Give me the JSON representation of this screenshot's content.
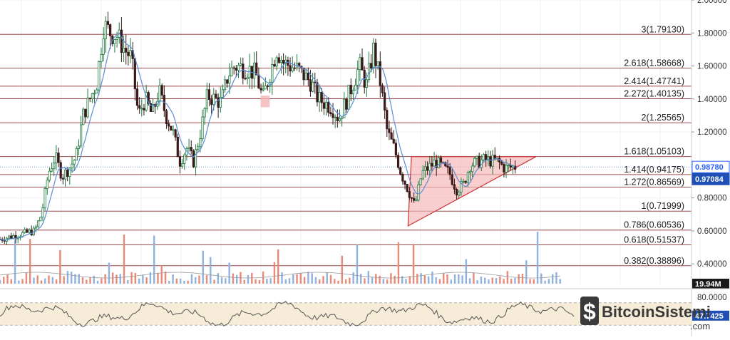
{
  "chart_data": [
    {
      "type": "candlestick",
      "panel": "price",
      "y_axis_side": "right",
      "ylim": [
        0.28,
        2.0
      ],
      "y_ticks": [
        "2.00000",
        "1.80000",
        "1.60000",
        "1.40000",
        "1.20000",
        "0.80000",
        "0.60000",
        "0.40000"
      ],
      "y_tick_values": [
        2.0,
        1.8,
        1.6,
        1.4,
        1.2,
        0.8,
        0.6,
        0.4
      ],
      "price_tags": [
        {
          "label": "0.98780",
          "value": 0.9878,
          "style": "outline",
          "color": "#2962ff"
        },
        {
          "label": "0.97084",
          "value": 0.97084,
          "style": "filled",
          "color": "#1f4fb5"
        }
      ],
      "fibonacci_levels": [
        {
          "label": "3(1.79130)",
          "value": 1.7913
        },
        {
          "label": "2.618(1.58668)",
          "value": 1.58668
        },
        {
          "label": "2.414(1.47741)",
          "value": 1.47741
        },
        {
          "label": "2.272(1.40135)",
          "value": 1.40135
        },
        {
          "label": "2(1.25565)",
          "value": 1.25565
        },
        {
          "label": "1.618(1.05103)",
          "value": 1.05103
        },
        {
          "label": "1.414(0.94175)",
          "value": 0.94175
        },
        {
          "label": "1.272(0.86569)",
          "value": 0.86569
        },
        {
          "label": "1(0.71999)",
          "value": 0.71999
        },
        {
          "label": "0.786(0.60536)",
          "value": 0.60536
        },
        {
          "label": "0.618(0.51537)",
          "value": 0.51537
        },
        {
          "label": "0.382(0.38896)",
          "value": 0.38896
        }
      ],
      "triangle_pattern": {
        "type": "ascending-triangle",
        "points": [
          [
            0.595,
            1.05
          ],
          [
            0.775,
            1.05
          ],
          [
            0.59,
            0.63
          ]
        ],
        "fill": "#f4b4b4",
        "stroke": "#cc3333"
      },
      "highlight_box": {
        "x_range": [
          0.377,
          0.39
        ],
        "y_range": [
          1.35,
          1.42
        ],
        "fill": "#f4b4b4"
      },
      "candle_colors": {
        "up": "#1e7a3e",
        "down": "#3a1a1a"
      },
      "moving_average_color": "#5b8dd6",
      "price_path": [
        [
          0.0,
          0.55
        ],
        [
          0.03,
          0.58
        ],
        [
          0.05,
          0.6
        ],
        [
          0.06,
          0.7
        ],
        [
          0.07,
          0.95
        ],
        [
          0.08,
          1.05
        ],
        [
          0.09,
          0.93
        ],
        [
          0.1,
          0.98
        ],
        [
          0.11,
          1.05
        ],
        [
          0.12,
          1.3
        ],
        [
          0.13,
          1.4
        ],
        [
          0.14,
          1.5
        ],
        [
          0.15,
          1.85
        ],
        [
          0.16,
          1.8
        ],
        [
          0.17,
          1.78
        ],
        [
          0.18,
          1.7
        ],
        [
          0.19,
          1.65
        ],
        [
          0.2,
          1.3
        ],
        [
          0.21,
          1.4
        ],
        [
          0.22,
          1.3
        ],
        [
          0.23,
          1.45
        ],
        [
          0.24,
          1.3
        ],
        [
          0.25,
          1.2
        ],
        [
          0.26,
          1.02
        ],
        [
          0.27,
          1.1
        ],
        [
          0.28,
          1.02
        ],
        [
          0.29,
          1.2
        ],
        [
          0.3,
          1.42
        ],
        [
          0.31,
          1.4
        ],
        [
          0.32,
          1.38
        ],
        [
          0.33,
          1.55
        ],
        [
          0.34,
          1.6
        ],
        [
          0.36,
          1.58
        ],
        [
          0.37,
          1.55
        ],
        [
          0.38,
          1.4
        ],
        [
          0.39,
          1.55
        ],
        [
          0.4,
          1.7
        ],
        [
          0.41,
          1.62
        ],
        [
          0.43,
          1.58
        ],
        [
          0.45,
          1.5
        ],
        [
          0.46,
          1.4
        ],
        [
          0.48,
          1.35
        ],
        [
          0.49,
          1.28
        ],
        [
          0.5,
          1.38
        ],
        [
          0.52,
          1.6
        ],
        [
          0.53,
          1.48
        ],
        [
          0.54,
          1.7
        ],
        [
          0.55,
          1.5
        ],
        [
          0.56,
          1.2
        ],
        [
          0.57,
          1.1
        ],
        [
          0.58,
          0.95
        ],
        [
          0.59,
          0.85
        ],
        [
          0.6,
          0.75
        ],
        [
          0.61,
          0.95
        ],
        [
          0.63,
          1.02
        ],
        [
          0.65,
          0.95
        ],
        [
          0.66,
          0.85
        ],
        [
          0.67,
          0.88
        ],
        [
          0.68,
          1.0
        ],
        [
          0.7,
          1.03
        ],
        [
          0.72,
          1.02
        ],
        [
          0.73,
          0.98
        ],
        [
          0.745,
          0.99
        ]
      ]
    },
    {
      "type": "bar",
      "panel": "volume",
      "volume_label": "19.94M",
      "colors": {
        "up": "#8fb2e0",
        "down": "#e88a78"
      }
    },
    {
      "type": "line",
      "panel": "rsi",
      "y_ticks": [
        "80.0000"
      ],
      "y_tick_values": [
        80
      ],
      "current_value_tag": "47.7425",
      "band_fill": "#f7ecd8",
      "line_color": "#555555"
    }
  ],
  "watermark": {
    "text": "BitcoinSistemi",
    "subtext": ".com"
  }
}
